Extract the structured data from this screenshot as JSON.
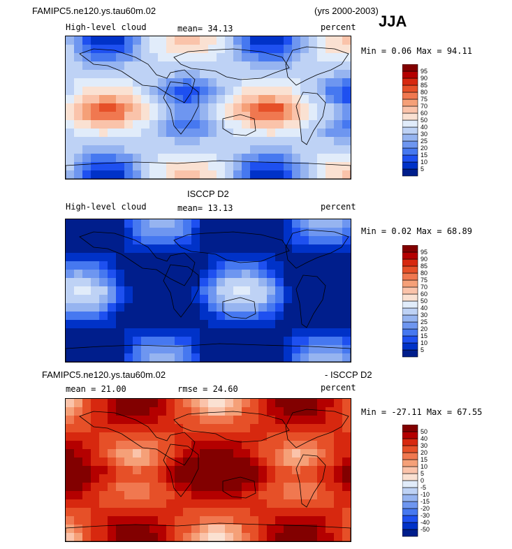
{
  "header": {
    "model": "FAMIPC5.ne120.ys.tau60m.02",
    "years": "(yrs 2000-2003)",
    "season": "JJA"
  },
  "colors": {
    "seq": [
      "#001e8c",
      "#0032c8",
      "#1e50f0",
      "#4678f0",
      "#6e96f0",
      "#96b4f0",
      "#bed2f5",
      "#e1ecfa",
      "#fae1d2",
      "#fac3aa",
      "#f5a078",
      "#f07850",
      "#e65028",
      "#d7280f",
      "#b40000",
      "#820000"
    ],
    "div": [
      "#001e8c",
      "#0032c8",
      "#1e50f0",
      "#4678f0",
      "#6e96f0",
      "#96b4f0",
      "#bed2f5",
      "#e1ecfa",
      "#fae1d2",
      "#fac3aa",
      "#f5a078",
      "#f07850",
      "#e65028",
      "#d7280f",
      "#b40000",
      "#820000"
    ]
  },
  "chart_data": [
    {
      "type": "heatmap",
      "title": "",
      "variable": "High-level cloud",
      "units": "percent",
      "mean": "mean= 34.13",
      "min": "0.06",
      "max": "94.11",
      "minmax_text": "Min = 0.06 Max = 94.11",
      "levels": [
        "5",
        "10",
        "15",
        "20",
        "25",
        "30",
        "40",
        "50",
        "60",
        "70",
        "75",
        "80",
        "85",
        "90",
        "95"
      ],
      "palette": "seq",
      "base": 34.13
    },
    {
      "type": "heatmap",
      "title": "ISCCP D2",
      "variable": "High-level cloud",
      "units": "percent",
      "mean": "mean= 13.13",
      "min": "0.02",
      "max": "68.89",
      "minmax_text": "Min = 0.02 Max = 68.89",
      "levels": [
        "5",
        "10",
        "15",
        "20",
        "25",
        "30",
        "40",
        "50",
        "60",
        "70",
        "75",
        "80",
        "85",
        "90",
        "95"
      ],
      "palette": "seq",
      "base": 13.13
    },
    {
      "type": "heatmap",
      "title_left": "FAMIPC5.ne120.ys.tau60m.02",
      "title_right": "- ISCCP D2",
      "units": "percent",
      "mean": "mean = 21.00",
      "rmse": "rmse = 24.60",
      "min": "-27.11",
      "max": "67.55",
      "minmax_text": "Min = -27.11 Max = 67.55",
      "levels": [
        "-50",
        "-40",
        "-30",
        "-20",
        "-15",
        "-10",
        "-5",
        "0",
        "5",
        "10",
        "15",
        "20",
        "30",
        "40",
        "50"
      ],
      "palette": "div",
      "base": 21.0
    }
  ]
}
